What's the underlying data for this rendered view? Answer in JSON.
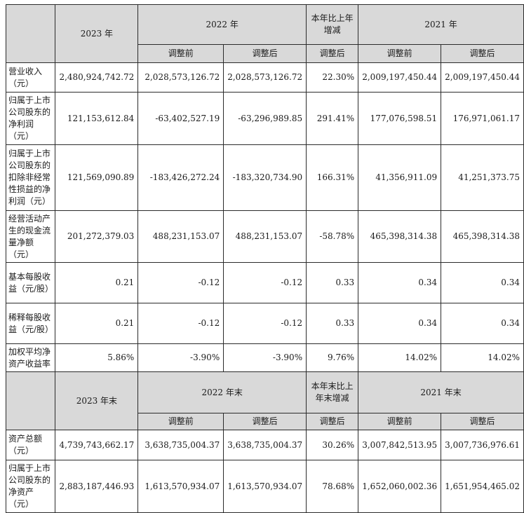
{
  "section1": {
    "header": {
      "year_2023": "2023 年",
      "year_2022": "2022 年",
      "change": "本年比上年增减",
      "year_2021": "2021 年",
      "before_adj": "调整前",
      "after_adj": "调整后"
    },
    "rows": [
      {
        "label": "营业收入（元）",
        "v2023": "2,480,924,742.72",
        "v2022_before": "2,028,573,126.72",
        "v2022_after": "2,028,573,126.72",
        "change": "22.30%",
        "v2021_before": "2,009,197,450.44",
        "v2021_after": "2,009,197,450.44"
      },
      {
        "label": "归属于上市公司股东的净利润（元）",
        "v2023": "121,153,612.84",
        "v2022_before": "-63,402,527.19",
        "v2022_after": "-63,296,989.85",
        "change": "291.41%",
        "v2021_before": "177,076,598.51",
        "v2021_after": "176,971,061.17"
      },
      {
        "label": "归属于上市公司股东的扣除非经常性损益的净利润（元）",
        "v2023": "121,569,090.89",
        "v2022_before": "-183,426,272.24",
        "v2022_after": "-183,320,734.90",
        "change": "166.31%",
        "v2021_before": "41,356,911.09",
        "v2021_after": "41,251,373.75"
      },
      {
        "label": "经营活动产生的现金流量净额（元）",
        "v2023": "201,272,379.03",
        "v2022_before": "488,231,153.07",
        "v2022_after": "488,231,153.07",
        "change": "-58.78%",
        "v2021_before": "465,398,314.38",
        "v2021_after": "465,398,314.38"
      },
      {
        "label": "基本每股收益（元/股）",
        "v2023": "0.21",
        "v2022_before": "-0.12",
        "v2022_after": "-0.12",
        "change": "0.33",
        "v2021_before": "0.34",
        "v2021_after": "0.34"
      },
      {
        "label": "稀释每股收益（元/股）",
        "v2023": "0.21",
        "v2022_before": "-0.12",
        "v2022_after": "-0.12",
        "change": "0.33",
        "v2021_before": "0.34",
        "v2021_after": "0.34"
      },
      {
        "label": "加权平均净资产收益率",
        "v2023": "5.86%",
        "v2022_before": "-3.90%",
        "v2022_after": "-3.90%",
        "change": "9.76%",
        "v2021_before": "14.02%",
        "v2021_after": "14.02%"
      }
    ]
  },
  "section2": {
    "header": {
      "year_2023": "2023 年末",
      "year_2022": "2022 年末",
      "change": "本年末比上年末增减",
      "year_2021": "2021 年末",
      "before_adj": "调整前",
      "after_adj": "调整后"
    },
    "rows": [
      {
        "label": "资产总额（元）",
        "v2023": "4,739,743,662.17",
        "v2022_before": "3,638,735,004.37",
        "v2022_after": "3,638,735,004.37",
        "change": "30.26%",
        "v2021_before": "3,007,842,513.95",
        "v2021_after": "3,007,736,976.61"
      },
      {
        "label": "归属于上市公司股东的净资产（元）",
        "v2023": "2,883,187,446.93",
        "v2022_before": "1,613,570,934.07",
        "v2022_after": "1,613,570,934.07",
        "change": "78.68%",
        "v2021_before": "1,652,060,002.36",
        "v2021_after": "1,651,954,465.02"
      }
    ]
  }
}
